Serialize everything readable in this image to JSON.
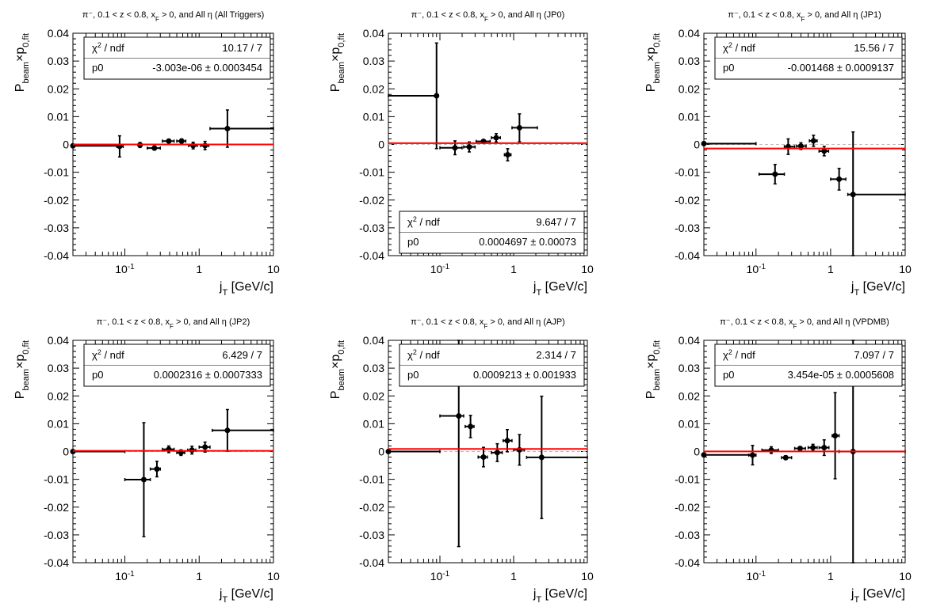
{
  "chart_data": [
    {
      "type": "scatter",
      "title": "π⁻, 0.1 < z < 0.8, x_F > 0, and All η (All Triggers)",
      "xlabel": "j_T [GeV/c]",
      "ylabel": "P_beam×p_0,fit",
      "xscale": "log",
      "xlim": [
        0.02,
        10
      ],
      "ylim": [
        -0.04,
        0.04
      ],
      "x_ticks": [
        "10^-1",
        "1",
        "10"
      ],
      "y_ticks": [
        "0.04",
        "0.03",
        "0.02",
        "0.01",
        "0",
        "-0.01",
        "-0.02",
        "-0.03",
        "-0.04"
      ],
      "stats": [
        [
          "χ² / ndf",
          "10.17 / 7"
        ],
        [
          "p0",
          "-3.003e-06 ± 0.0003454"
        ]
      ],
      "stats_box": "top",
      "fit_value": -3e-06,
      "points": [
        {
          "x": 0.02,
          "y": -0.0005,
          "xlo": 0.02,
          "xhi": 0.084,
          "err": 0.0005
        },
        {
          "x": 0.085,
          "y": -0.0007,
          "xlo": 0.078,
          "xhi": 0.095,
          "err": 0.0038
        },
        {
          "x": 0.16,
          "y": -0.0002,
          "xlo": 0.15,
          "xhi": 0.17,
          "err": 0.0009
        },
        {
          "x": 0.25,
          "y": -0.0013,
          "xlo": 0.2,
          "xhi": 0.3,
          "err": 0.0007
        },
        {
          "x": 0.39,
          "y": 0.0012,
          "xlo": 0.32,
          "xhi": 0.46,
          "err": 0.0006
        },
        {
          "x": 0.58,
          "y": 0.0012,
          "xlo": 0.5,
          "xhi": 0.66,
          "err": 0.0008
        },
        {
          "x": 0.83,
          "y": -0.0004,
          "xlo": 0.72,
          "xhi": 0.94,
          "err": 0.0012
        },
        {
          "x": 1.2,
          "y": -0.0004,
          "xlo": 1.05,
          "xhi": 1.35,
          "err": 0.0015
        },
        {
          "x": 2.4,
          "y": 0.0057,
          "xlo": 1.4,
          "xhi": 10,
          "err": 0.0067
        }
      ]
    },
    {
      "type": "scatter",
      "title": "π⁻, 0.1 < z < 0.8, x_F > 0, and All η (JP0)",
      "xlabel": "j_T [GeV/c]",
      "ylabel": "P_beam×p_0,fit",
      "xscale": "log",
      "xlim": [
        0.02,
        10
      ],
      "ylim": [
        -0.04,
        0.04
      ],
      "x_ticks": [
        "10^-1",
        "1",
        "10"
      ],
      "y_ticks": [
        "0.04",
        "0.03",
        "0.02",
        "0.01",
        "0",
        "-0.01",
        "-0.02",
        "-0.03",
        "-0.04"
      ],
      "stats": [
        [
          "χ² / ndf",
          "9.647 / 7"
        ],
        [
          "p0",
          "0.0004697 ± 0.00073"
        ]
      ],
      "stats_box": "bottom",
      "fit_value": 0.00047,
      "points": [
        {
          "x": 0.09,
          "y": 0.0175,
          "xlo": 0.02,
          "xhi": 0.095,
          "err": 0.019
        },
        {
          "x": 0.16,
          "y": -0.0012,
          "xlo": 0.1,
          "xhi": 0.2,
          "err": 0.0025
        },
        {
          "x": 0.25,
          "y": -0.0009,
          "xlo": 0.21,
          "xhi": 0.3,
          "err": 0.0018
        },
        {
          "x": 0.39,
          "y": 0.0011,
          "xlo": 0.31,
          "xhi": 0.48,
          "err": 0.0006
        },
        {
          "x": 0.58,
          "y": 0.0024,
          "xlo": 0.5,
          "xhi": 0.66,
          "err": 0.0015
        },
        {
          "x": 0.83,
          "y": -0.0037,
          "xlo": 0.75,
          "xhi": 0.92,
          "err": 0.0022
        },
        {
          "x": 1.2,
          "y": 0.006,
          "xlo": 0.95,
          "xhi": 2.1,
          "err": 0.005
        }
      ]
    },
    {
      "type": "scatter",
      "title": "π⁻, 0.1 < z < 0.8, x_F > 0, and All η (JP1)",
      "xlabel": "j_T [GeV/c]",
      "ylabel": "P_beam×p_0,fit",
      "xscale": "log",
      "xlim": [
        0.02,
        10
      ],
      "ylim": [
        -0.04,
        0.04
      ],
      "x_ticks": [
        "10^-1",
        "1",
        "10"
      ],
      "y_ticks": [
        "0.04",
        "0.03",
        "0.02",
        "0.01",
        "0",
        "-0.01",
        "-0.02",
        "-0.03",
        "-0.04"
      ],
      "stats": [
        [
          "χ² / ndf",
          "15.56 / 7"
        ],
        [
          "p0",
          "-0.001468 ± 0.0009137"
        ]
      ],
      "stats_box": "top",
      "fit_value": -0.001468,
      "points": [
        {
          "x": 0.02,
          "y": 0.0003,
          "xlo": 0.02,
          "xhi": 0.1,
          "err": 0.0
        },
        {
          "x": 0.18,
          "y": -0.0107,
          "xlo": 0.11,
          "xhi": 0.24,
          "err": 0.0035
        },
        {
          "x": 0.27,
          "y": -0.0008,
          "xlo": 0.24,
          "xhi": 0.33,
          "err": 0.0028
        },
        {
          "x": 0.4,
          "y": -0.0006,
          "xlo": 0.35,
          "xhi": 0.47,
          "err": 0.0012
        },
        {
          "x": 0.59,
          "y": 0.0013,
          "xlo": 0.52,
          "xhi": 0.66,
          "err": 0.002
        },
        {
          "x": 0.82,
          "y": -0.0024,
          "xlo": 0.7,
          "xhi": 0.94,
          "err": 0.0017
        },
        {
          "x": 1.3,
          "y": -0.0125,
          "xlo": 1.0,
          "xhi": 1.6,
          "err": 0.0039
        },
        {
          "x": 2.0,
          "y": -0.018,
          "xlo": 1.7,
          "xhi": 10,
          "err": 0.0225
        }
      ]
    },
    {
      "type": "scatter",
      "title": "π⁻, 0.1 < z < 0.8, x_F > 0, and All η (JP2)",
      "xlabel": "j_T [GeV/c]",
      "ylabel": "P_beam×p_0,fit",
      "xscale": "log",
      "xlim": [
        0.02,
        10
      ],
      "ylim": [
        -0.04,
        0.04
      ],
      "x_ticks": [
        "10^-1",
        "1",
        "10"
      ],
      "y_ticks": [
        "0.04",
        "0.03",
        "0.02",
        "0.01",
        "0",
        "-0.01",
        "-0.02",
        "-0.03",
        "-0.04"
      ],
      "stats": [
        [
          "χ² / ndf",
          "6.429 / 7"
        ],
        [
          "p0",
          "0.0002316 ± 0.0007333"
        ]
      ],
      "stats_box": "top",
      "fit_value": 0.0002316,
      "points": [
        {
          "x": 0.02,
          "y": 0.0,
          "xlo": 0.02,
          "xhi": 0.1,
          "err": 0.0
        },
        {
          "x": 0.18,
          "y": -0.0101,
          "xlo": 0.1,
          "xhi": 0.22,
          "err": 0.0205
        },
        {
          "x": 0.27,
          "y": -0.0063,
          "xlo": 0.22,
          "xhi": 0.3,
          "err": 0.0028
        },
        {
          "x": 0.39,
          "y": 0.0008,
          "xlo": 0.32,
          "xhi": 0.46,
          "err": 0.0012
        },
        {
          "x": 0.57,
          "y": -0.0004,
          "xlo": 0.5,
          "xhi": 0.64,
          "err": 0.001
        },
        {
          "x": 0.8,
          "y": 0.0005,
          "xlo": 0.7,
          "xhi": 0.9,
          "err": 0.0014
        },
        {
          "x": 1.2,
          "y": 0.0016,
          "xlo": 1.0,
          "xhi": 1.4,
          "err": 0.0018
        },
        {
          "x": 2.4,
          "y": 0.0076,
          "xlo": 1.5,
          "xhi": 10,
          "err": 0.0075
        }
      ]
    },
    {
      "type": "scatter",
      "title": "π⁻, 0.1 < z < 0.8, x_F > 0, and All η (AJP)",
      "xlabel": "j_T [GeV/c]",
      "ylabel": "P_beam×p_0,fit",
      "xscale": "log",
      "xlim": [
        0.02,
        10
      ],
      "ylim": [
        -0.04,
        0.04
      ],
      "x_ticks": [
        "10^-1",
        "1",
        "10"
      ],
      "y_ticks": [
        "0.04",
        "0.03",
        "0.02",
        "0.01",
        "0",
        "-0.01",
        "-0.02",
        "-0.03",
        "-0.04"
      ],
      "stats": [
        [
          "χ² / ndf",
          "2.314 / 7"
        ],
        [
          "p0",
          "0.0009213 ± 0.001933"
        ]
      ],
      "stats_box": "top",
      "fit_value": 0.0009213,
      "points": [
        {
          "x": 0.02,
          "y": 0.0,
          "xlo": 0.02,
          "xhi": 0.1,
          "err": 0.0
        },
        {
          "x": 0.18,
          "y": 0.0128,
          "xlo": 0.1,
          "xhi": 0.21,
          "err": 0.047
        },
        {
          "x": 0.26,
          "y": 0.009,
          "xlo": 0.22,
          "xhi": 0.29,
          "err": 0.004
        },
        {
          "x": 0.39,
          "y": -0.002,
          "xlo": 0.33,
          "xhi": 0.44,
          "err": 0.0035
        },
        {
          "x": 0.6,
          "y": -0.0004,
          "xlo": 0.5,
          "xhi": 0.7,
          "err": 0.0032
        },
        {
          "x": 0.82,
          "y": 0.0039,
          "xlo": 0.72,
          "xhi": 0.95,
          "err": 0.004
        },
        {
          "x": 1.2,
          "y": 0.0006,
          "xlo": 1.0,
          "xhi": 1.4,
          "err": 0.0055
        },
        {
          "x": 2.4,
          "y": -0.0021,
          "xlo": 1.5,
          "xhi": 10,
          "err": 0.022
        }
      ]
    },
    {
      "type": "scatter",
      "title": "π⁻, 0.1 < z < 0.8, x_F > 0, and All η (VPDMB)",
      "xlabel": "j_T [GeV/c]",
      "ylabel": "P_beam×p_0,fit",
      "xscale": "log",
      "xlim": [
        0.02,
        10
      ],
      "ylim": [
        -0.04,
        0.04
      ],
      "x_ticks": [
        "10^-1",
        "1",
        "10"
      ],
      "y_ticks": [
        "0.04",
        "0.03",
        "0.02",
        "0.01",
        "0",
        "-0.01",
        "-0.02",
        "-0.03",
        "-0.04"
      ],
      "stats": [
        [
          "χ² / ndf",
          "7.097 / 7"
        ],
        [
          "p0",
          "3.454e-05 ± 0.0005608"
        ]
      ],
      "stats_box": "top",
      "fit_value": 3.454e-05,
      "points": [
        {
          "x": 0.02,
          "y": -0.0012,
          "xlo": 0.02,
          "xhi": 0.085,
          "err": 0.0
        },
        {
          "x": 0.09,
          "y": -0.0013,
          "xlo": 0.08,
          "xhi": 0.1,
          "err": 0.0035
        },
        {
          "x": 0.16,
          "y": 0.0005,
          "xlo": 0.12,
          "xhi": 0.2,
          "err": 0.0012
        },
        {
          "x": 0.25,
          "y": -0.0022,
          "xlo": 0.22,
          "xhi": 0.3,
          "err": 0.0007
        },
        {
          "x": 0.39,
          "y": 0.0011,
          "xlo": 0.33,
          "xhi": 0.46,
          "err": 0.0005
        },
        {
          "x": 0.58,
          "y": 0.0014,
          "xlo": 0.5,
          "xhi": 0.66,
          "err": 0.0012
        },
        {
          "x": 0.82,
          "y": 0.0014,
          "xlo": 0.7,
          "xhi": 0.95,
          "err": 0.0028
        },
        {
          "x": 1.15,
          "y": 0.0057,
          "xlo": 1.05,
          "xhi": 1.3,
          "err": 0.0155
        },
        {
          "x": 2.0,
          "y": 0.0,
          "xlo": 1.3,
          "xhi": 10,
          "err": 0.04
        }
      ]
    }
  ]
}
